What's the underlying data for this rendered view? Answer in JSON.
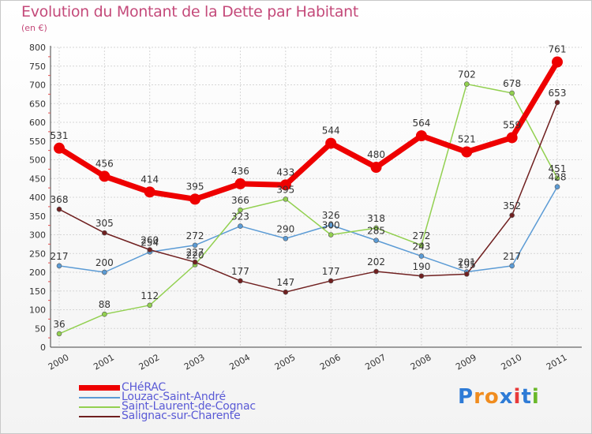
{
  "title": "Evolution du Montant de la Dette par Habitant",
  "subtitle": "(en €)",
  "brand": {
    "text": "Proxiti",
    "letters": [
      "P",
      "r",
      "o",
      "x",
      "i",
      "t",
      "i"
    ],
    "letter_colors": [
      "#2e7bd6",
      "#f08c1e",
      "#f08c1e",
      "#2e7bd6",
      "#e83a3a",
      "#2e7bd6",
      "#6ab82a"
    ]
  },
  "chart_data": {
    "type": "line",
    "title": "Evolution du Montant de la Dette par Habitant",
    "ylabel": "(en €)",
    "ylim": [
      0,
      800
    ],
    "yticks": [
      "0",
      "50",
      "100",
      "150",
      "200",
      "250",
      "300",
      "350",
      "400",
      "450",
      "500",
      "550",
      "600",
      "650",
      "700",
      "750",
      "800"
    ],
    "categories": [
      "2000",
      "2001",
      "2002",
      "2003",
      "2004",
      "2005",
      "2006",
      "2007",
      "2008",
      "2009",
      "2010",
      "2011"
    ],
    "grid": true,
    "series": [
      {
        "name": "CHéRAC",
        "color": "#ee0000",
        "line_width": 7,
        "marker": 7,
        "values": [
          531,
          456,
          414,
          395,
          436,
          433,
          544,
          480,
          564,
          521,
          559,
          761
        ],
        "labels": [
          "531",
          "456",
          "414",
          "395",
          "436",
          "433",
          "544",
          "480",
          "564",
          "521",
          "559",
          "761"
        ]
      },
      {
        "name": "Louzac-Saint-André",
        "color": "#5b9bd5",
        "line_width": 1.5,
        "marker": 3,
        "values": [
          217,
          200,
          254,
          272,
          323,
          290,
          326,
          285,
          243,
          201,
          217,
          428
        ],
        "labels": [
          "217",
          "200",
          "254",
          "272",
          "323",
          "290",
          "326",
          "285",
          "243",
          "201",
          "217",
          "428"
        ]
      },
      {
        "name": "Saint-Laurent-de-Cognac",
        "color": "#92d050",
        "line_width": 1.5,
        "marker": 3,
        "values": [
          36,
          88,
          112,
          220,
          366,
          395,
          300,
          318,
          272,
          702,
          678,
          451
        ],
        "labels": [
          "36",
          "88",
          "112",
          "220",
          "366",
          "395",
          "300",
          "318",
          "272",
          "702",
          "678",
          "451"
        ]
      },
      {
        "name": "Salignac-sur-Charente",
        "color": "#702020",
        "line_width": 1.5,
        "marker": 3,
        "values": [
          368,
          305,
          260,
          227,
          177,
          147,
          177,
          202,
          190,
          195,
          352,
          653
        ],
        "labels": [
          "368",
          "305",
          "260",
          "227",
          "177",
          "147",
          "177",
          "202",
          "190",
          "195",
          "352",
          "653"
        ]
      }
    ]
  }
}
